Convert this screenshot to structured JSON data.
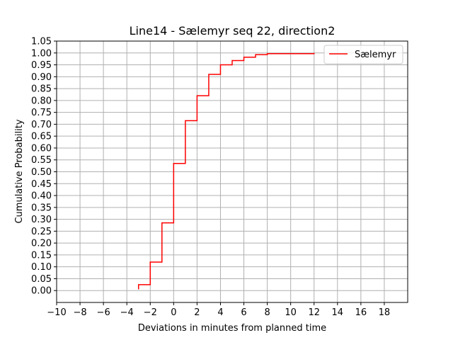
{
  "chart_data": {
    "type": "line",
    "step": "post",
    "title": "Line14 - Sælemyr seq 22, direction2",
    "xlabel": "Deviations in minutes from planned time",
    "ylabel": "Cumulative Probability",
    "xlim": [
      -10,
      20
    ],
    "ylim": [
      -0.05,
      1.05
    ],
    "xticks": [
      "−10",
      "−8",
      "−6",
      "−4",
      "−2",
      "0",
      "2",
      "4",
      "6",
      "8",
      "10",
      "12",
      "14",
      "16",
      "18"
    ],
    "xtick_values": [
      -10,
      -8,
      -6,
      -4,
      -2,
      0,
      2,
      4,
      6,
      8,
      10,
      12,
      14,
      16,
      18
    ],
    "yticks": [
      "0.00",
      "0.05",
      "0.10",
      "0.15",
      "0.20",
      "0.25",
      "0.30",
      "0.35",
      "0.40",
      "0.45",
      "0.50",
      "0.55",
      "0.60",
      "0.65",
      "0.70",
      "0.75",
      "0.80",
      "0.85",
      "0.90",
      "0.95",
      "1.00",
      "1.05"
    ],
    "ytick_values": [
      0,
      0.05,
      0.1,
      0.15,
      0.2,
      0.25,
      0.3,
      0.35,
      0.4,
      0.45,
      0.5,
      0.55,
      0.6,
      0.65,
      0.7,
      0.75,
      0.8,
      0.85,
      0.9,
      0.95,
      1.0,
      1.05
    ],
    "grid": true,
    "legend": "top-right",
    "series": [
      {
        "name": "Sælemyr",
        "color": "#ff0000",
        "x": [
          -3,
          -3,
          -2,
          -1,
          0,
          1,
          2,
          3,
          4,
          5,
          6,
          7,
          8,
          12
        ],
        "y": [
          0.005,
          0.025,
          0.12,
          0.285,
          0.535,
          0.715,
          0.82,
          0.91,
          0.95,
          0.968,
          0.982,
          0.993,
          0.997,
          1.0
        ]
      }
    ]
  }
}
